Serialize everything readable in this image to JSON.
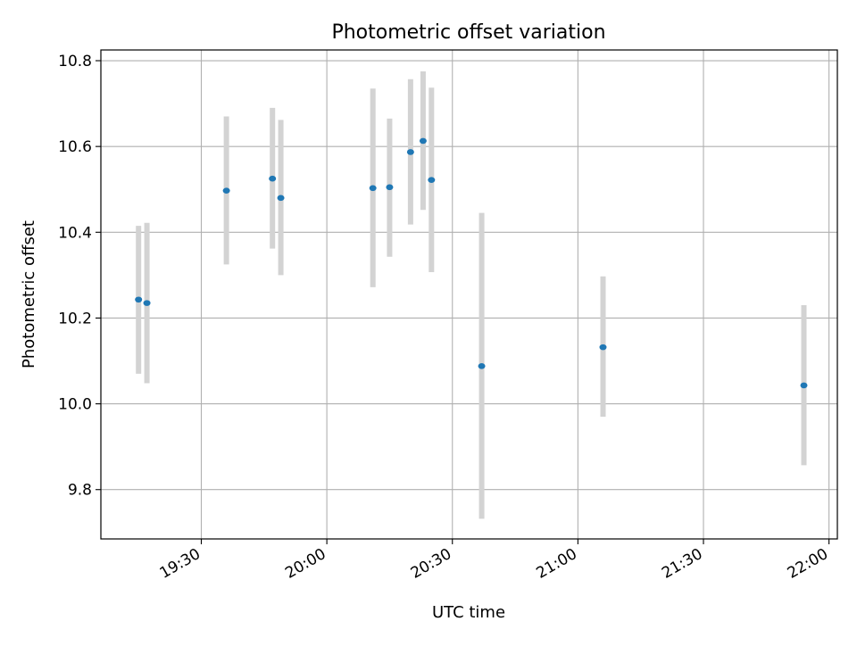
{
  "chart_data": {
    "type": "scatter",
    "title": "Photometric offset variation",
    "xlabel": "UTC time",
    "ylabel": "Photometric offset",
    "xlim": [
      "19:06",
      "22:02"
    ],
    "ylim": [
      9.685,
      10.825
    ],
    "x_ticks": [
      "19:30",
      "20:00",
      "20:30",
      "21:00",
      "21:30",
      "22:00"
    ],
    "y_ticks": [
      "9.8",
      "10.0",
      "10.2",
      "10.4",
      "10.6",
      "10.8"
    ],
    "grid": true,
    "colors": {
      "marker": "#1f77b4",
      "errorbar": "#d3d3d3",
      "grid": "#b0b0b0"
    },
    "points": [
      {
        "time": "19:15",
        "y": 10.243,
        "y_low": 10.07,
        "y_high": 10.415
      },
      {
        "time": "19:17",
        "y": 10.235,
        "y_low": 10.048,
        "y_high": 10.422
      },
      {
        "time": "19:36",
        "y": 10.497,
        "y_low": 10.325,
        "y_high": 10.67
      },
      {
        "time": "19:47",
        "y": 10.525,
        "y_low": 10.362,
        "y_high": 10.69
      },
      {
        "time": "19:49",
        "y": 10.48,
        "y_low": 10.3,
        "y_high": 10.662
      },
      {
        "time": "20:11",
        "y": 10.503,
        "y_low": 10.272,
        "y_high": 10.735
      },
      {
        "time": "20:15",
        "y": 10.505,
        "y_low": 10.343,
        "y_high": 10.665
      },
      {
        "time": "20:20",
        "y": 10.587,
        "y_low": 10.418,
        "y_high": 10.757
      },
      {
        "time": "20:23",
        "y": 10.613,
        "y_low": 10.452,
        "y_high": 10.775
      },
      {
        "time": "20:25",
        "y": 10.522,
        "y_low": 10.307,
        "y_high": 10.737
      },
      {
        "time": "20:37",
        "y": 10.088,
        "y_low": 9.732,
        "y_high": 10.445
      },
      {
        "time": "21:06",
        "y": 10.132,
        "y_low": 9.97,
        "y_high": 10.297
      },
      {
        "time": "21:54",
        "y": 10.043,
        "y_low": 9.857,
        "y_high": 10.23
      }
    ]
  }
}
